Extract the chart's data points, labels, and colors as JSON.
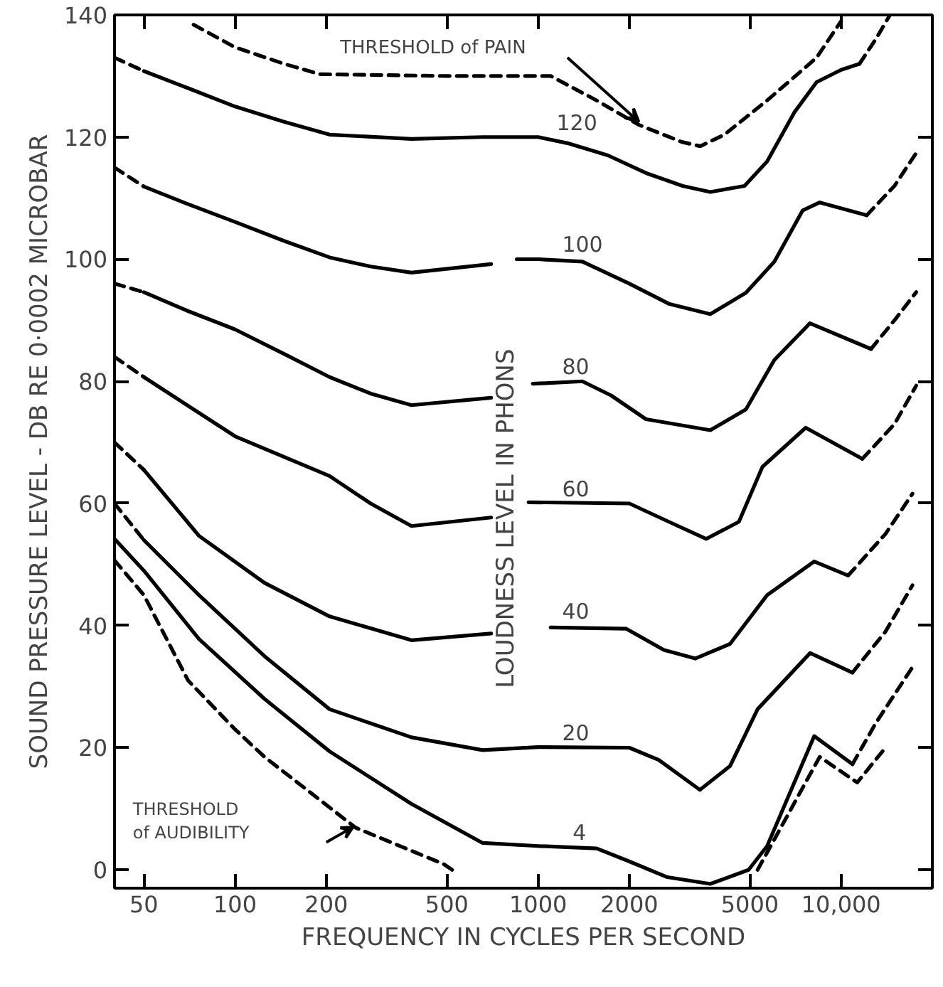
{
  "chart_data": {
    "type": "line",
    "xlabel": "FREQUENCY IN CYCLES PER SECOND",
    "ylabel": "SOUND PRESSURE LEVEL - DB RE 0·0002 MICROBAR",
    "log": "x",
    "grid": false,
    "xlim": [
      40,
      20000
    ],
    "ylim": [
      -3,
      140
    ],
    "xticks": [
      50,
      100,
      200,
      500,
      1000,
      2000,
      5000,
      {
        "value": 10000,
        "label": "10,000"
      }
    ],
    "yticks": [
      0,
      20,
      40,
      60,
      80,
      100,
      120,
      140
    ],
    "series": [
      {
        "color": "#000000",
        "line_style": "dashed",
        "x": [
          73,
          100,
          145,
          190,
          500,
          1000,
          1100,
          1560,
          2150,
          2980,
          3430,
          4120,
          5700,
          8300,
          10000
        ],
        "values": [
          138.4,
          134.7,
          132,
          130.3,
          130,
          130,
          130,
          126,
          122,
          119.2,
          118.5,
          120.4,
          126,
          133,
          139
        ]
      },
      {
        "color": "#000000",
        "line_style": "dashed",
        "x": [
          40,
          50
        ],
        "values": [
          133,
          130.8
        ]
      },
      {
        "color": "#000000",
        "line_style": "solid",
        "x": [
          50,
          70,
          100,
          145,
          205,
          382,
          656,
          1000,
          1250,
          1700,
          2300,
          3000,
          3700,
          4800,
          5700,
          7000,
          8300,
          10000,
          11500
        ],
        "values": [
          130.8,
          128,
          125,
          122.5,
          120.4,
          119.7,
          120,
          120,
          119,
          117,
          114,
          112,
          111,
          112,
          116,
          124,
          129,
          131,
          132
        ]
      },
      {
        "color": "#000000",
        "line_style": "dashed",
        "x": [
          11500,
          13000,
          14500
        ],
        "values": [
          132,
          136,
          140
        ]
      },
      {
        "color": "#000000",
        "line_style": "dashed",
        "x": [
          40,
          50
        ],
        "values": [
          115,
          111.9
        ]
      },
      {
        "color": "#000000",
        "line_style": "solid",
        "x": [
          50,
          70,
          100,
          145,
          205,
          280,
          382,
          700
        ],
        "values": [
          111.9,
          109,
          106.1,
          103,
          100.3,
          98.8,
          97.8,
          99.2
        ]
      },
      {
        "color": "#000000",
        "line_style": "solid",
        "x": [
          850,
          1000,
          1400,
          2000,
          2700,
          3700,
          4850,
          6020,
          7470,
          8500,
          12150
        ],
        "values": [
          100,
          100,
          99.6,
          96,
          92.7,
          91,
          94.5,
          99.6,
          108,
          109.3,
          107.2
        ]
      },
      {
        "color": "#000000",
        "line_style": "dashed",
        "x": [
          12150,
          15000,
          17700
        ],
        "values": [
          107.2,
          112,
          117.4
        ]
      },
      {
        "color": "#000000",
        "line_style": "dashed",
        "x": [
          40,
          50
        ],
        "values": [
          96,
          94.6
        ]
      },
      {
        "color": "#000000",
        "line_style": "solid",
        "x": [
          50,
          70,
          100,
          145,
          205,
          280,
          382,
          700
        ],
        "values": [
          94.6,
          91.5,
          88.5,
          84.5,
          80.7,
          78,
          76.1,
          77.3
        ]
      },
      {
        "color": "#000000",
        "line_style": "solid",
        "x": [
          960,
          1400,
          1740,
          2270,
          3700,
          4850,
          6020,
          7890,
          12550
        ],
        "values": [
          79.6,
          80,
          77.7,
          73.8,
          72,
          75.4,
          83.5,
          89.5,
          85.3
        ]
      },
      {
        "color": "#000000",
        "line_style": "dashed",
        "x": [
          12550,
          15000,
          17700
        ],
        "values": [
          85.3,
          90,
          94.6
        ]
      },
      {
        "color": "#000000",
        "line_style": "dashed",
        "x": [
          40,
          50
        ],
        "values": [
          84,
          80.7
        ]
      },
      {
        "color": "#000000",
        "line_style": "solid",
        "x": [
          50,
          100,
          205,
          280,
          382,
          700
        ],
        "values": [
          80.7,
          71,
          64.5,
          60,
          56.3,
          57.7
        ]
      },
      {
        "color": "#000000",
        "line_style": "solid",
        "x": [
          930,
          2000,
          2700,
          3590,
          4600,
          5500,
          7640,
          11750
        ],
        "values": [
          60.2,
          60,
          57,
          54.2,
          57,
          66,
          72.4,
          67.3
        ]
      },
      {
        "color": "#000000",
        "line_style": "dashed",
        "x": [
          11750,
          15000,
          17700
        ],
        "values": [
          67.3,
          73,
          79.3
        ]
      },
      {
        "color": "#000000",
        "line_style": "dashed",
        "x": [
          40,
          50
        ],
        "values": [
          70,
          65.5
        ]
      },
      {
        "color": "#000000",
        "line_style": "solid",
        "x": [
          50,
          76,
          125,
          205,
          382,
          700
        ],
        "values": [
          65.5,
          54.7,
          47,
          41.5,
          37.6,
          38.7
        ]
      },
      {
        "color": "#000000",
        "line_style": "solid",
        "x": [
          1100,
          1950,
          2600,
          3300,
          4300,
          5700,
          8150,
          10550
        ],
        "values": [
          39.7,
          39.5,
          36,
          34.6,
          37,
          45,
          50.5,
          48.2
        ]
      },
      {
        "color": "#000000",
        "line_style": "dashed",
        "x": [
          10550,
          14000,
          17200
        ],
        "values": [
          48.2,
          55,
          61.6
        ]
      },
      {
        "color": "#000000",
        "line_style": "dashed",
        "x": [
          40,
          50
        ],
        "values": [
          60,
          54
        ]
      },
      {
        "color": "#000000",
        "line_style": "solid",
        "x": [
          50,
          76,
          125,
          205,
          382,
          656,
          1000,
          2000,
          2500,
          3420,
          4300,
          5300,
          7900,
          10900
        ],
        "values": [
          54,
          45,
          35,
          26.3,
          21.7,
          19.6,
          20.1,
          20,
          18,
          13.1,
          17,
          26.3,
          35.5,
          32.3
        ]
      },
      {
        "color": "#000000",
        "line_style": "dashed",
        "x": [
          10900,
          14000,
          17200
        ],
        "values": [
          32.3,
          39,
          46.6
        ]
      },
      {
        "color": "#000000",
        "line_style": "solid",
        "x": [
          40,
          50,
          76,
          125,
          205,
          382,
          656,
          1000,
          1560,
          1950,
          2670,
          3700,
          4950,
          5700,
          8150,
          10900
        ],
        "values": [
          54.2,
          49,
          37.8,
          28,
          19.4,
          10.8,
          4.4,
          3.9,
          3.5,
          1.6,
          -1.2,
          -2.3,
          0,
          3.9,
          21.9,
          17.3
        ]
      },
      {
        "color": "#000000",
        "line_style": "dashed",
        "x": [
          10900,
          13000,
          17200
        ],
        "values": [
          17.3,
          24,
          33.2
        ]
      },
      {
        "color": "#000000",
        "line_style": "dashed",
        "x": [
          40,
          50,
          70,
          100,
          125,
          250,
          490,
          520
        ],
        "values": [
          50.7,
          45,
          31,
          23,
          18.5,
          6.9,
          0.9,
          0
        ]
      },
      {
        "color": "#000000",
        "line_style": "dashed",
        "x": [
          5300,
          8500,
          11300,
          14000
        ],
        "values": [
          0,
          18.5,
          14.3,
          20
        ]
      }
    ],
    "annotations": [
      "LOUDNESS LEVEL IN PHONS",
      "THRESHOLD of PAIN",
      "THRESHOLD\nof AUDIBILITY",
      {
        "text": "120",
        "x": 1150,
        "y": 120
      },
      {
        "text": "100",
        "x": 1200,
        "y": 100
      },
      {
        "text": "80",
        "x": 1200,
        "y": 80
      },
      {
        "text": "60",
        "x": 1200,
        "y": 60
      },
      {
        "text": "40",
        "x": 1200,
        "y": 40
      },
      {
        "text": "20",
        "x": 1200,
        "y": 20
      },
      {
        "text": "4",
        "x": 1300,
        "y": 3.7
      }
    ]
  }
}
